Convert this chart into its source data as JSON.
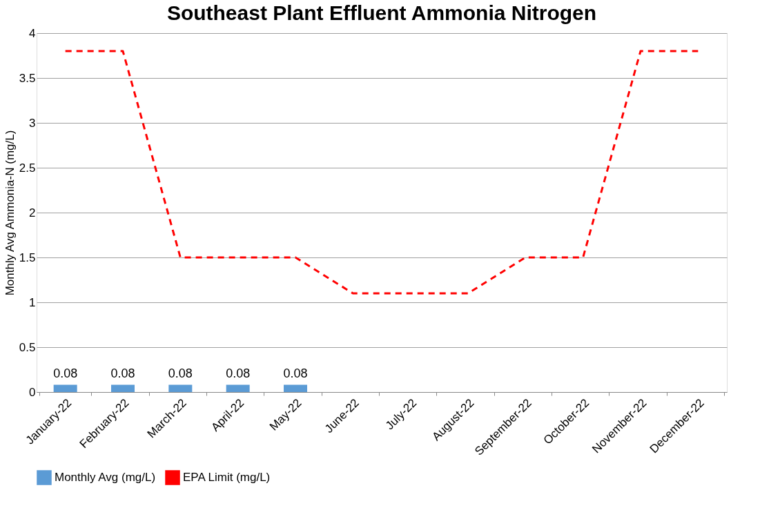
{
  "chart_data": {
    "type": "bar",
    "title": "Southeast Plant Effluent Ammonia Nitrogen",
    "ylabel": "Monthly Avg Ammonia-N  (mg/L)",
    "categories": [
      "January-22",
      "February-22",
      "March-22",
      "April-22",
      "May-22",
      "June-22",
      "July-22",
      "August-22",
      "September-22",
      "October-22",
      "November-22",
      "December-22"
    ],
    "series": [
      {
        "name": "Monthly Avg (mg/L)",
        "color": "#5b9bd5",
        "values": [
          0.08,
          0.08,
          0.08,
          0.08,
          0.08,
          null,
          null,
          null,
          null,
          null,
          null,
          null
        ],
        "value_labels": [
          "0.08",
          "0.08",
          "0.08",
          "0.08",
          "0.08",
          null,
          null,
          null,
          null,
          null,
          null,
          null
        ]
      },
      {
        "name": "EPA Limit (mg/L)",
        "type": "line",
        "color": "#ff0000",
        "line_style": "dashed",
        "values": [
          3.8,
          3.8,
          1.5,
          1.5,
          1.5,
          1.1,
          1.1,
          1.1,
          1.5,
          1.5,
          3.8,
          3.8
        ]
      }
    ],
    "ylim": [
      0,
      4
    ],
    "yticks": [
      0,
      0.5,
      1,
      1.5,
      2,
      2.5,
      3,
      3.5,
      4
    ],
    "grid": "y",
    "legend": "bottom"
  }
}
